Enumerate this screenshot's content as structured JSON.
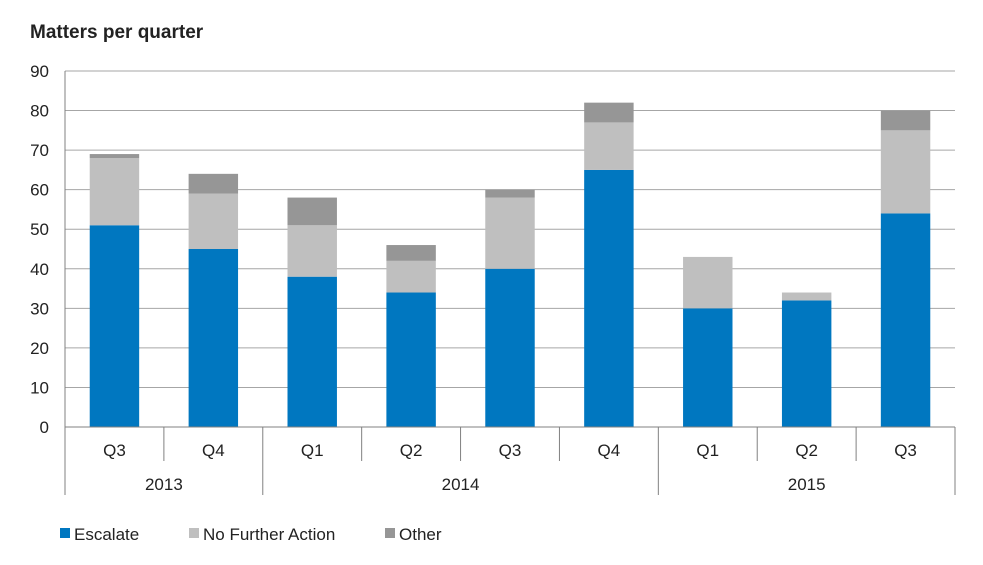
{
  "chart_data": {
    "type": "bar",
    "stacked": true,
    "title": "Matters per quarter",
    "xlabel": "",
    "ylabel": "",
    "ylim": [
      0,
      90
    ],
    "yticks": [
      0,
      10,
      20,
      30,
      40,
      50,
      60,
      70,
      80,
      90
    ],
    "categories": [
      "Q3",
      "Q4",
      "Q1",
      "Q2",
      "Q3",
      "Q4",
      "Q1",
      "Q2",
      "Q3"
    ],
    "groups": [
      {
        "label": "2013",
        "count": 2
      },
      {
        "label": "2014",
        "count": 4
      },
      {
        "label": "2015",
        "count": 3
      }
    ],
    "series": [
      {
        "name": "Escalate",
        "color": "#0077c0",
        "values": [
          51,
          45,
          38,
          34,
          40,
          65,
          30,
          32,
          54
        ]
      },
      {
        "name": "No Further Action",
        "color": "#bfbfbf",
        "values": [
          17,
          14,
          13,
          8,
          18,
          12,
          13,
          2,
          21
        ]
      },
      {
        "name": "Other",
        "color": "#969696",
        "values": [
          1,
          5,
          7,
          4,
          2,
          5,
          0,
          0,
          5
        ]
      }
    ],
    "grid": true,
    "legend_position": "bottom-left"
  }
}
